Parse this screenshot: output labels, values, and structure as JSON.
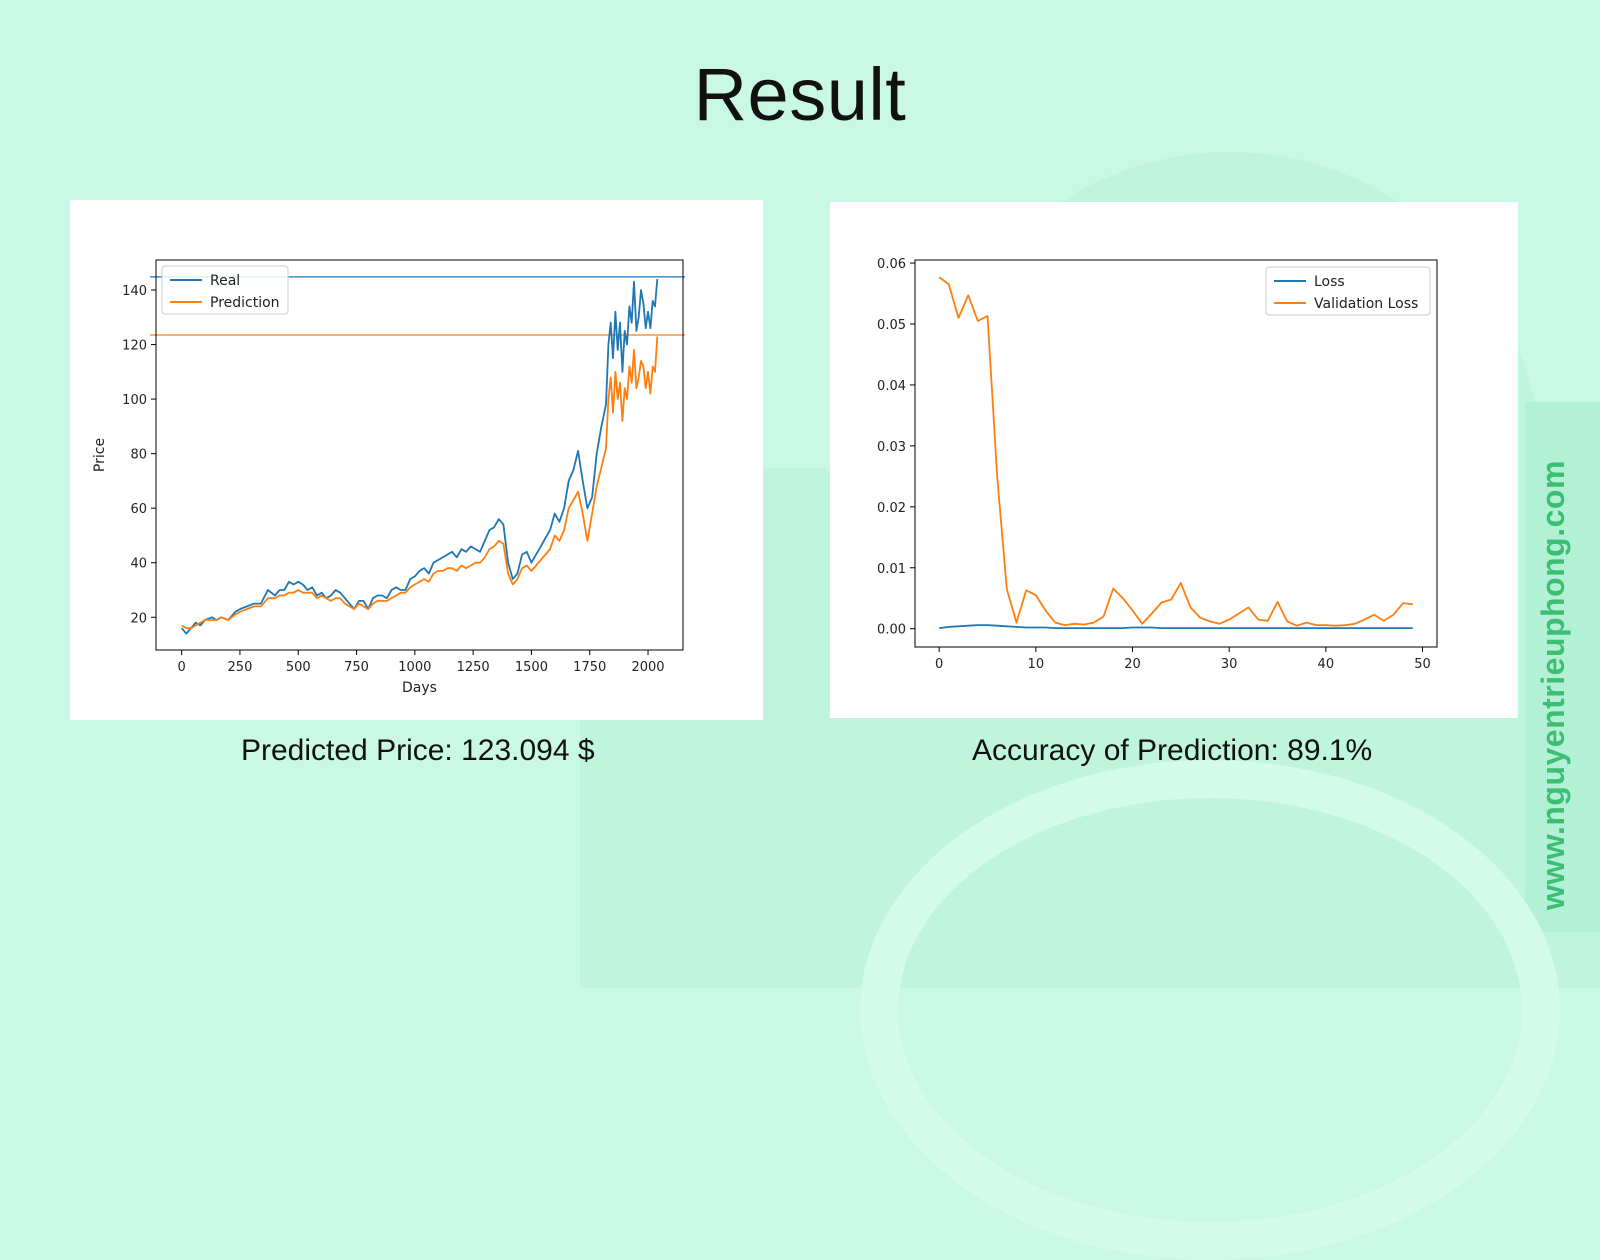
{
  "title": "Result",
  "watermark": "www.nguyentrieuphong.com",
  "captions": {
    "left": "Predicted Price: 123.094 $",
    "right": "Accuracy of Prediction: 89.1%"
  },
  "colors": {
    "background": "#c9f8e4",
    "series_blue": "#1f77b4",
    "series_orange": "#ff7f0e",
    "watermark": "#3cbf72"
  },
  "chart_data": [
    {
      "type": "line",
      "xlabel": "Days",
      "ylabel": "Price",
      "xlim": [
        -110,
        2150
      ],
      "ylim": [
        8,
        151
      ],
      "xticks": [
        0,
        250,
        500,
        750,
        1000,
        1250,
        1500,
        1750,
        2000
      ],
      "yticks": [
        20,
        40,
        60,
        80,
        100,
        120,
        140
      ],
      "legend_position": "top-left",
      "hlines": [
        {
          "y": 144.8,
          "color": "#1f77b4"
        },
        {
          "y": 123.5,
          "color": "#ff7f0e"
        }
      ],
      "series": [
        {
          "name": "Real",
          "color": "#1f77b4",
          "x": [
            0,
            20,
            40,
            60,
            80,
            100,
            130,
            150,
            170,
            200,
            230,
            250,
            280,
            310,
            340,
            370,
            400,
            420,
            440,
            460,
            480,
            500,
            520,
            540,
            560,
            580,
            600,
            620,
            640,
            660,
            680,
            700,
            720,
            740,
            760,
            780,
            800,
            820,
            840,
            860,
            880,
            900,
            920,
            940,
            960,
            980,
            1000,
            1020,
            1040,
            1060,
            1080,
            1100,
            1120,
            1140,
            1160,
            1180,
            1200,
            1220,
            1240,
            1260,
            1280,
            1300,
            1320,
            1340,
            1360,
            1380,
            1400,
            1420,
            1440,
            1460,
            1480,
            1500,
            1520,
            1540,
            1560,
            1580,
            1600,
            1620,
            1640,
            1660,
            1680,
            1700,
            1720,
            1740,
            1760,
            1780,
            1800,
            1820,
            1830,
            1840,
            1850,
            1860,
            1870,
            1880,
            1890,
            1900,
            1910,
            1920,
            1930,
            1940,
            1950,
            1960,
            1970,
            1980,
            1990,
            2000,
            2010,
            2020,
            2030,
            2040
          ],
          "y": [
            16,
            14,
            16,
            18,
            17,
            19,
            20,
            19,
            20,
            19,
            22,
            23,
            24,
            25,
            25,
            30,
            28,
            30,
            30,
            33,
            32,
            33,
            32,
            30,
            31,
            28,
            29,
            27,
            28,
            30,
            29,
            27,
            25,
            23,
            26,
            26,
            23,
            27,
            28,
            28,
            27,
            30,
            31,
            30,
            30,
            34,
            35,
            37,
            38,
            36,
            40,
            41,
            42,
            43,
            44,
            42,
            45,
            44,
            46,
            45,
            44,
            48,
            52,
            53,
            56,
            54,
            40,
            34,
            36,
            43,
            44,
            40,
            43,
            46,
            49,
            52,
            58,
            55,
            60,
            70,
            74,
            81,
            70,
            60,
            64,
            80,
            90,
            98,
            120,
            128,
            115,
            132,
            118,
            128,
            110,
            125,
            120,
            134,
            128,
            143,
            125,
            130,
            140,
            135,
            126,
            132,
            126,
            136,
            134,
            144
          ]
        },
        {
          "name": "Prediction",
          "color": "#ff7f0e",
          "x": [
            0,
            20,
            40,
            60,
            80,
            100,
            130,
            150,
            170,
            200,
            230,
            250,
            280,
            310,
            340,
            370,
            400,
            420,
            440,
            460,
            480,
            500,
            520,
            540,
            560,
            580,
            600,
            620,
            640,
            660,
            680,
            700,
            720,
            740,
            760,
            780,
            800,
            820,
            840,
            860,
            880,
            900,
            920,
            940,
            960,
            980,
            1000,
            1020,
            1040,
            1060,
            1080,
            1100,
            1120,
            1140,
            1160,
            1180,
            1200,
            1220,
            1240,
            1260,
            1280,
            1300,
            1320,
            1340,
            1360,
            1380,
            1400,
            1420,
            1440,
            1460,
            1480,
            1500,
            1520,
            1540,
            1560,
            1580,
            1600,
            1620,
            1640,
            1660,
            1680,
            1700,
            1720,
            1740,
            1760,
            1780,
            1800,
            1820,
            1830,
            1840,
            1850,
            1860,
            1870,
            1880,
            1890,
            1900,
            1910,
            1920,
            1930,
            1940,
            1950,
            1960,
            1970,
            1980,
            1990,
            2000,
            2010,
            2020,
            2030,
            2040
          ],
          "y": [
            17,
            16,
            16,
            17,
            18,
            19,
            19,
            19,
            20,
            19,
            21,
            22,
            23,
            24,
            24,
            27,
            27,
            28,
            28,
            29,
            29,
            30,
            29,
            29,
            29,
            27,
            28,
            27,
            26,
            27,
            27,
            25,
            24,
            23,
            25,
            24,
            23,
            25,
            26,
            26,
            26,
            27,
            28,
            29,
            29,
            31,
            32,
            33,
            34,
            33,
            36,
            37,
            37,
            38,
            38,
            37,
            39,
            38,
            39,
            40,
            40,
            42,
            45,
            46,
            48,
            47,
            36,
            32,
            34,
            38,
            39,
            37,
            39,
            41,
            43,
            45,
            50,
            48,
            52,
            60,
            63,
            66,
            58,
            48,
            58,
            68,
            75,
            82,
            100,
            108,
            95,
            110,
            100,
            106,
            92,
            104,
            100,
            112,
            106,
            118,
            104,
            108,
            114,
            112,
            104,
            110,
            102,
            112,
            110,
            123
          ]
        }
      ]
    },
    {
      "type": "line",
      "xlabel": "",
      "ylabel": "",
      "xlim": [
        -2.5,
        51.5
      ],
      "ylim": [
        -0.003,
        0.0605
      ],
      "xticks": [
        0,
        10,
        20,
        30,
        40,
        50
      ],
      "yticks": [
        0.0,
        0.01,
        0.02,
        0.03,
        0.04,
        0.05,
        0.06
      ],
      "legend_position": "top-right",
      "series": [
        {
          "name": "Loss",
          "color": "#1f77b4",
          "x": [
            0,
            1,
            2,
            3,
            4,
            5,
            6,
            7,
            8,
            9,
            10,
            11,
            12,
            13,
            14,
            15,
            16,
            17,
            18,
            19,
            20,
            21,
            22,
            23,
            24,
            25,
            26,
            27,
            28,
            29,
            30,
            31,
            32,
            33,
            34,
            35,
            36,
            37,
            38,
            39,
            40,
            41,
            42,
            43,
            44,
            45,
            46,
            47,
            48,
            49
          ],
          "y": [
            0.0001,
            0.0003,
            0.0004,
            0.0005,
            0.0006,
            0.0006,
            0.0005,
            0.0004,
            0.0003,
            0.0002,
            0.0002,
            0.0002,
            0.0001,
            0.0001,
            0.0001,
            0.0001,
            0.0001,
            0.0001,
            0.0001,
            0.0001,
            0.0002,
            0.0002,
            0.0002,
            0.0001,
            0.0001,
            0.0001,
            0.0001,
            0.0001,
            0.0001,
            0.0001,
            0.0001,
            0.0001,
            0.0001,
            0.0001,
            0.0001,
            0.0001,
            0.0001,
            0.0001,
            0.0001,
            0.0001,
            0.0001,
            0.0001,
            0.0001,
            0.0001,
            0.0001,
            0.0001,
            0.0001,
            0.0001,
            0.0001,
            0.0001
          ]
        },
        {
          "name": "Validation Loss",
          "color": "#ff7f0e",
          "x": [
            0,
            1,
            2,
            3,
            4,
            5,
            6,
            7,
            8,
            9,
            10,
            11,
            12,
            13,
            14,
            15,
            16,
            17,
            18,
            19,
            20,
            21,
            22,
            23,
            24,
            25,
            26,
            27,
            28,
            29,
            30,
            31,
            32,
            33,
            34,
            35,
            36,
            37,
            38,
            39,
            40,
            41,
            42,
            43,
            44,
            45,
            46,
            47,
            48,
            49
          ],
          "y": [
            0.0577,
            0.0565,
            0.051,
            0.0547,
            0.0505,
            0.0513,
            0.025,
            0.0065,
            0.001,
            0.0063,
            0.0055,
            0.003,
            0.001,
            0.0006,
            0.0008,
            0.0007,
            0.001,
            0.002,
            0.0066,
            0.005,
            0.003,
            0.0008,
            0.0025,
            0.0043,
            0.0048,
            0.0075,
            0.0035,
            0.0018,
            0.0012,
            0.0008,
            0.0015,
            0.0025,
            0.0035,
            0.0015,
            0.0013,
            0.0044,
            0.0012,
            0.0005,
            0.001,
            0.0006,
            0.0006,
            0.0005,
            0.0006,
            0.0008,
            0.0015,
            0.0023,
            0.0013,
            0.0023,
            0.0042,
            0.004
          ]
        }
      ]
    }
  ]
}
